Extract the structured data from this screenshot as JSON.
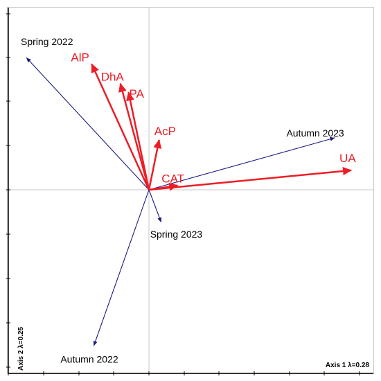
{
  "chart_data": {
    "type": "scatter",
    "subtype": "biplot",
    "xlabel": "Axis 1 λ=0.28",
    "ylabel": "Axis 2 λ=0.25",
    "grid": false,
    "series": [
      {
        "name": "",
        "color": "#1a1a80",
        "vectors": [
          {
            "label": "Spring 2022",
            "x": -0.6,
            "y": 0.61
          },
          {
            "label": "Autumn 2023",
            "x": 0.91,
            "y": 0.24
          },
          {
            "label": "Spring 2023",
            "x": 0.06,
            "y": -0.15
          },
          {
            "label": "Autumn 2022",
            "x": -0.27,
            "y": -0.72
          }
        ]
      },
      {
        "name": "",
        "color": "#ee1c25",
        "vectors": [
          {
            "label": "AlP",
            "x": -0.28,
            "y": 0.58
          },
          {
            "label": "DhA",
            "x": -0.14,
            "y": 0.49
          },
          {
            "label": "PA",
            "x": -0.1,
            "y": 0.45
          },
          {
            "label": "AcP",
            "x": 0.05,
            "y": 0.23
          },
          {
            "label": "CAT",
            "x": 0.14,
            "y": 0.02
          },
          {
            "label": "UA",
            "x": 0.99,
            "y": 0.09
          }
        ]
      }
    ]
  }
}
